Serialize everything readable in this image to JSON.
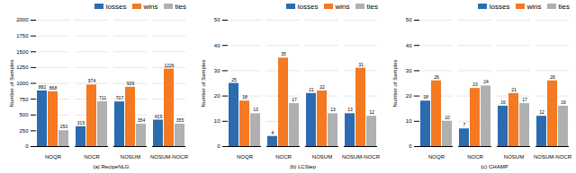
{
  "chart_data": [
    {
      "type": "bar",
      "xlabel": "(a) RecipeNLG",
      "ylabel": "Number of Samples",
      "categories": [
        "NOQR",
        "NOCR",
        "NOSUM",
        "NOSUM-NOCR"
      ],
      "series": [
        {
          "name": "losses",
          "color": "#2b6cb0",
          "values": [
            882,
            315,
            707,
            419
          ]
        },
        {
          "name": "wins",
          "color": "#f47920",
          "values": [
            868,
            974,
            939,
            1226
          ]
        },
        {
          "name": "ties",
          "color": "#b0b0b0",
          "values": [
            250,
            711,
            354,
            355
          ]
        }
      ],
      "ylim": [
        0,
        2000
      ],
      "yticks": [
        0,
        250,
        500,
        750,
        1000,
        1250,
        1500,
        1750,
        2000
      ],
      "grid": true,
      "legend": "top-right",
      "data_labels": true
    },
    {
      "type": "bar",
      "xlabel": "(b) LCStep",
      "ylabel": "Number of Samples",
      "categories": [
        "NOQR",
        "NOCR",
        "NOSUM",
        "NOSUM-NOCR"
      ],
      "series": [
        {
          "name": "losses",
          "color": "#2b6cb0",
          "values": [
            25,
            4,
            21,
            13
          ]
        },
        {
          "name": "wins",
          "color": "#f47920",
          "values": [
            18,
            35,
            22,
            31
          ]
        },
        {
          "name": "ties",
          "color": "#b0b0b0",
          "values": [
            13,
            17,
            13,
            12
          ]
        }
      ],
      "ylim": [
        0,
        50
      ],
      "yticks": [
        0,
        10,
        20,
        30,
        40,
        50
      ],
      "grid": true,
      "legend": "top-right",
      "data_labels": true
    },
    {
      "type": "bar",
      "xlabel": "(c) CHAMP",
      "ylabel": "Number of Samples",
      "categories": [
        "NOQR",
        "NOCR",
        "NOSUM",
        "NOSUM-NOCR"
      ],
      "series": [
        {
          "name": "losses",
          "color": "#2b6cb0",
          "values": [
            18,
            7,
            16,
            12
          ]
        },
        {
          "name": "wins",
          "color": "#f47920",
          "values": [
            26,
            23,
            21,
            26
          ]
        },
        {
          "name": "ties",
          "color": "#b0b0b0",
          "values": [
            10,
            24,
            17,
            16
          ]
        }
      ],
      "ylim": [
        0,
        50
      ],
      "yticks": [
        0,
        10,
        20,
        30,
        40,
        50
      ],
      "grid": true,
      "legend": "top-right",
      "data_labels": true
    }
  ]
}
